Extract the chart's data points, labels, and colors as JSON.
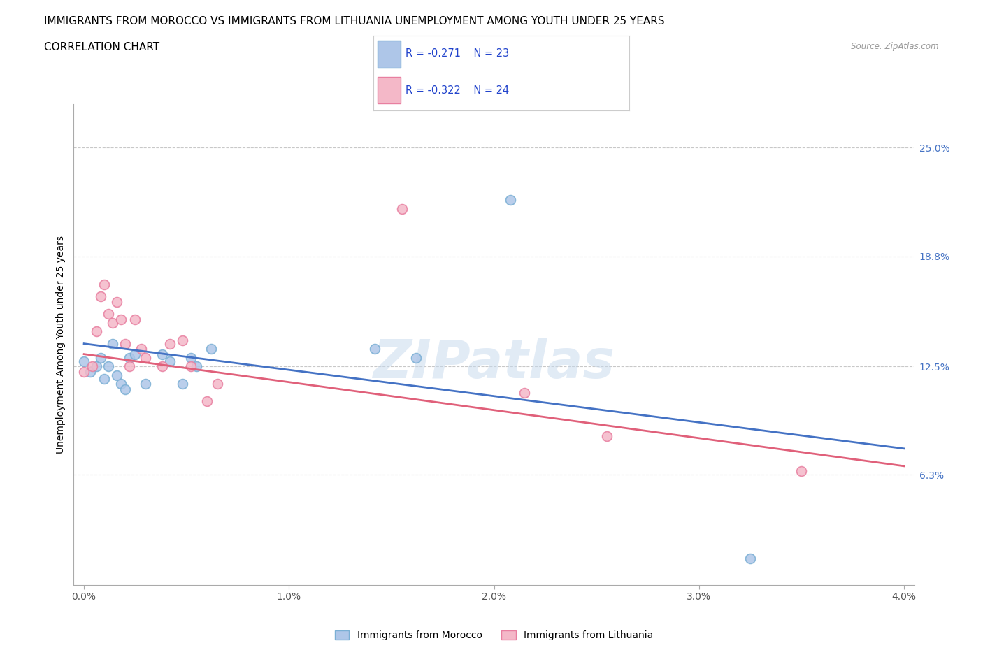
{
  "title_line1": "IMMIGRANTS FROM MOROCCO VS IMMIGRANTS FROM LITHUANIA UNEMPLOYMENT AMONG YOUTH UNDER 25 YEARS",
  "title_line2": "CORRELATION CHART",
  "source_text": "Source: ZipAtlas.com",
  "ylabel": "Unemployment Among Youth under 25 years",
  "watermark": "ZIPatlas",
  "legend1_label": "Immigrants from Morocco",
  "legend2_label": "Immigrants from Lithuania",
  "R1": -0.271,
  "N1": 23,
  "R2": -0.322,
  "N2": 24,
  "xlim": [
    -0.05,
    4.05
  ],
  "ylim": [
    0.0,
    27.5
  ],
  "ytick_vals": [
    6.3,
    12.5,
    18.8,
    25.0
  ],
  "ytick_labels": [
    "6.3%",
    "12.5%",
    "18.8%",
    "25.0%"
  ],
  "xtick_vals": [
    0.0,
    1.0,
    2.0,
    3.0,
    4.0
  ],
  "xtick_labels": [
    "0.0%",
    "1.0%",
    "2.0%",
    "3.0%",
    "4.0%"
  ],
  "color_morocco": "#aec6e8",
  "color_morocco_edge": "#7aafd4",
  "color_lithuania": "#f4b8c8",
  "color_lithuania_edge": "#e87fa0",
  "color_line_morocco": "#4472c4",
  "color_line_lithuania": "#e0607a",
  "color_grid": "#c8c8c8",
  "morocco_x": [
    0.0,
    0.03,
    0.06,
    0.08,
    0.1,
    0.12,
    0.14,
    0.16,
    0.18,
    0.2,
    0.22,
    0.25,
    0.3,
    0.38,
    0.42,
    0.48,
    0.52,
    0.55,
    0.62,
    1.42,
    1.62,
    2.08,
    3.25
  ],
  "morocco_y": [
    12.8,
    12.2,
    12.5,
    13.0,
    11.8,
    12.5,
    13.8,
    12.0,
    11.5,
    11.2,
    13.0,
    13.2,
    11.5,
    13.2,
    12.8,
    11.5,
    13.0,
    12.5,
    13.5,
    13.5,
    13.0,
    22.0,
    1.5
  ],
  "lithuania_x": [
    0.0,
    0.04,
    0.06,
    0.08,
    0.1,
    0.12,
    0.14,
    0.16,
    0.18,
    0.2,
    0.22,
    0.25,
    0.28,
    0.3,
    0.38,
    0.42,
    0.48,
    0.52,
    0.6,
    0.65,
    1.55,
    2.15,
    2.55,
    3.5
  ],
  "lithuania_y": [
    12.2,
    12.5,
    14.5,
    16.5,
    17.2,
    15.5,
    15.0,
    16.2,
    15.2,
    13.8,
    12.5,
    15.2,
    13.5,
    13.0,
    12.5,
    13.8,
    14.0,
    12.5,
    10.5,
    11.5,
    21.5,
    11.0,
    8.5,
    6.5
  ],
  "background_color": "#ffffff",
  "title_fontsize": 11,
  "axis_fontsize": 10,
  "tick_fontsize": 10,
  "marker_size": 100,
  "line_width": 2.0
}
